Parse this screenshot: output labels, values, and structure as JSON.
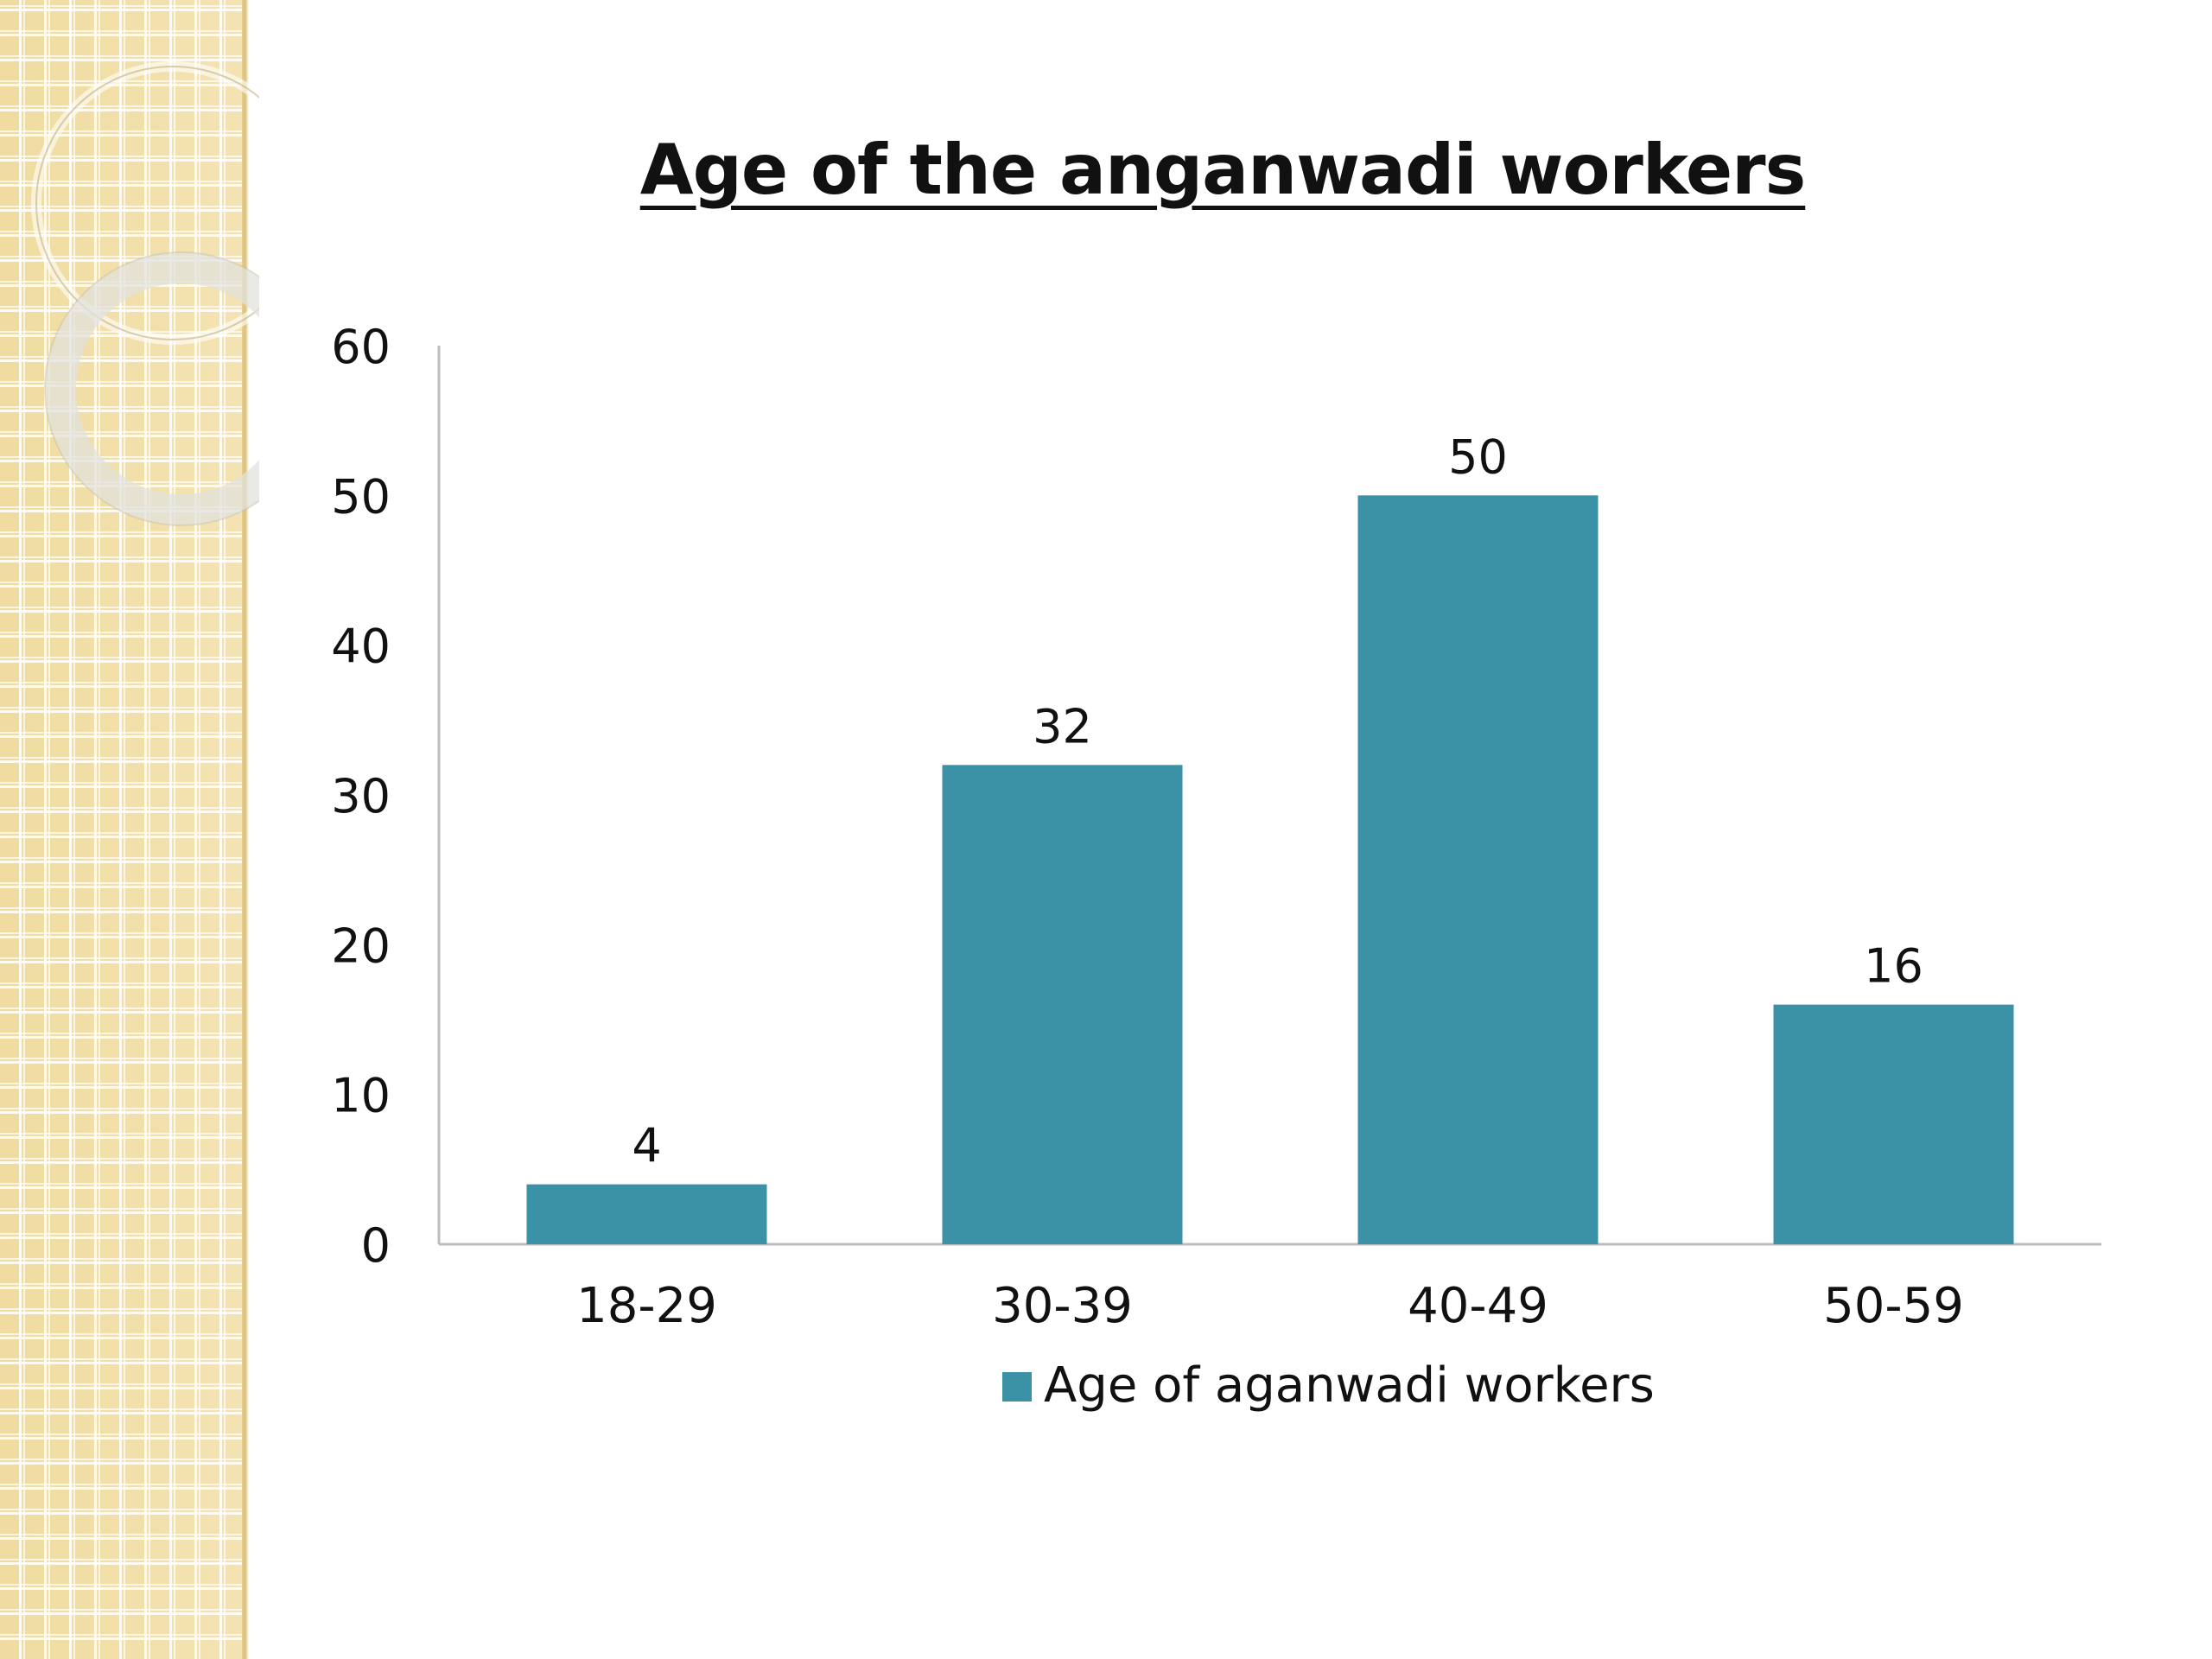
{
  "slide": {
    "title": "Age of the anganwadi workers",
    "accent_color": "#3b91a6",
    "panel_color": "#f2dfa6"
  },
  "chart_data": {
    "type": "bar",
    "categories": [
      "18-29",
      "30-39",
      "40-49",
      "50-59"
    ],
    "series": [
      {
        "name": "Age of aganwadi workers",
        "values": [
          4,
          32,
          50,
          16
        ],
        "color": "#3b91a6"
      }
    ],
    "ylim": [
      0,
      60
    ],
    "yticks": [
      "0",
      "10",
      "20",
      "30",
      "40",
      "50",
      "60"
    ],
    "grid": false,
    "legend": "bottom",
    "data_labels": [
      "4",
      "32",
      "50",
      "16"
    ]
  }
}
